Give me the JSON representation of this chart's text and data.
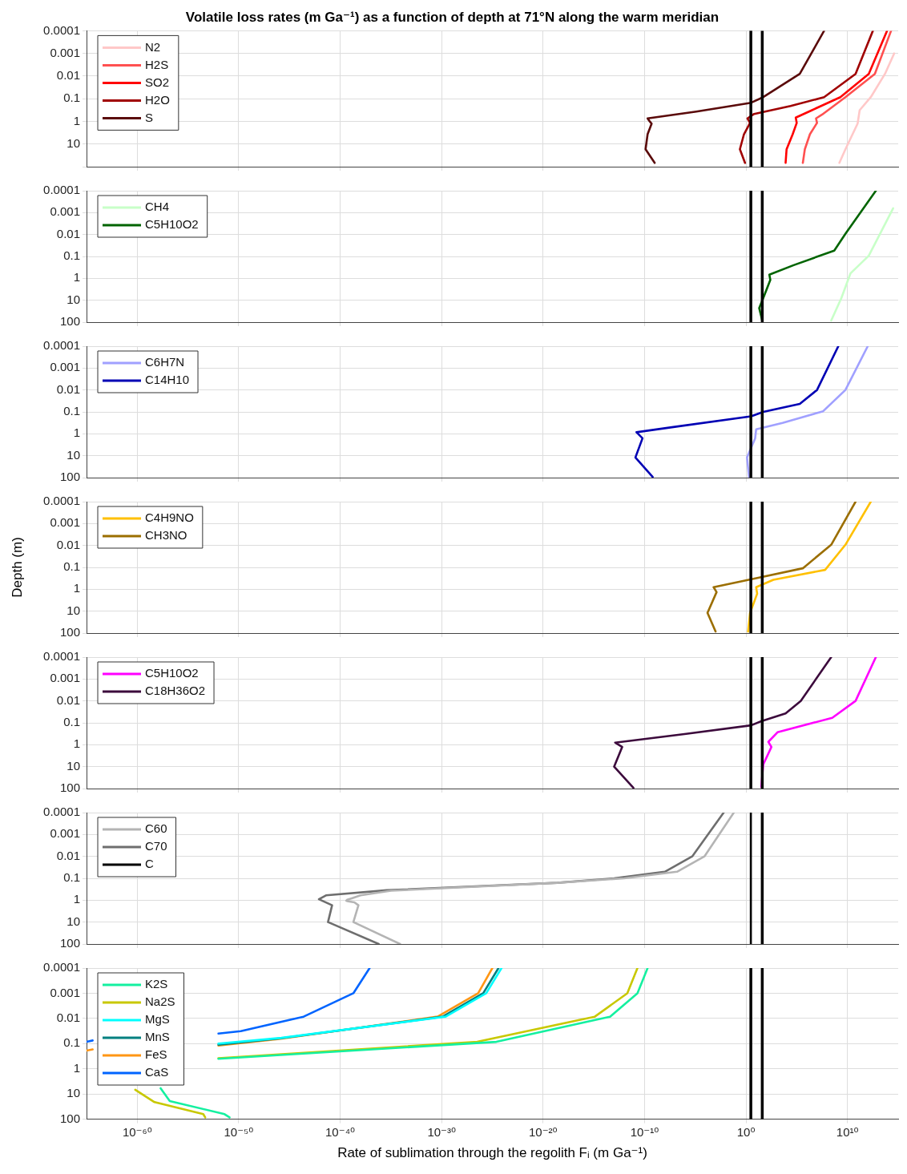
{
  "chart_data": [
    {
      "type": "line",
      "title": "Volatile loss rates (m Ga⁻¹) as a function of depth at 71°N along the warm meridian",
      "log": "xy",
      "grid": true,
      "legend": "top left",
      "marker": "none",
      "tick_labels": "y",
      "xlim": [
        1e-65,
        1000000000000000.0
      ],
      "xticks": [
        {
          "value": 1e-60,
          "label": null
        },
        {
          "value": 1e-50,
          "label": null
        },
        {
          "value": 1e-40,
          "label": null
        },
        {
          "value": 1e-30,
          "label": null
        },
        {
          "value": 1e-20,
          "label": null
        },
        {
          "value": 1e-10,
          "label": null
        },
        {
          "value": 1,
          "label": null
        },
        {
          "value": 10000000000.0,
          "label": null
        }
      ],
      "ylim": [
        100,
        0.0001
      ],
      "yticks": [
        0.0001,
        0.001,
        0.01,
        0.1,
        1,
        10,
        {
          "value": 100,
          "label": null
        }
      ],
      "ref_lines": [
        {
          "axis": "x",
          "value": 3,
          "color": "#000000"
        },
        {
          "axis": "x",
          "value": 40,
          "color": "#000000"
        }
      ],
      "series": [
        {
          "name": "N2",
          "color": "#ffc8c8",
          "x": [
            400000000000000.0,
            50000000000000.0,
            2000000000000.0,
            160000000000.0,
            100000000000.0,
            6300000000.0,
            1600000000.0
          ],
          "values": [
            0.001,
            0.008,
            0.085,
            0.32,
            1.26,
            17,
            68
          ]
        },
        {
          "name": "H2S",
          "color": "#ff5050",
          "x": [
            200000000000000.0,
            5000000000000.0,
            6300000000.0,
            32000000.0,
            8000000.0,
            10000000.0,
            2000000.0,
            630000.0,
            400000.0
          ],
          "values": [
            0.0001,
            0.008,
            0.085,
            0.5,
            0.74,
            1.17,
            3.7,
            17,
            68
          ]
        },
        {
          "name": "SO2",
          "color": "#ff0000",
          "x": [
            80000000000000.0,
            1260000000000.0,
            2000000000.0,
            3200000.0,
            80000.0,
            100000.0,
            40000.0,
            10000.0,
            8000.0
          ],
          "values": [
            0.0001,
            0.008,
            0.085,
            0.32,
            0.68,
            1.17,
            3.7,
            17,
            68
          ]
        },
        {
          "name": "H2O",
          "color": "#a00000",
          "x": [
            3200000000000.0,
            63000000000.0,
            50000000.0,
            25000.0,
            6.3,
            1.4,
            2.5,
            0.63,
            0.25,
            0.8
          ],
          "values": [
            0.0001,
            0.008,
            0.085,
            0.21,
            0.47,
            0.74,
            1.17,
            3.7,
            17,
            68
          ]
        },
        {
          "name": "S",
          "color": "#5a0a0a",
          "x": [
            50000000.0,
            200000.0,
            50,
            3.2,
            1.26e-05,
            2e-10,
            3.2e-10,
            5e-10,
            2e-10,
            1.26e-10,
            1e-09
          ],
          "values": [
            0.0001,
            0.008,
            0.085,
            0.15,
            0.37,
            0.74,
            1,
            1.26,
            3.7,
            17,
            68
          ]
        }
      ]
    },
    {
      "type": "line",
      "log": "xy",
      "grid": true,
      "legend": "top left",
      "marker": "none",
      "tick_labels": "y",
      "xlim": [
        1e-65,
        1000000000000000.0
      ],
      "xticks": [
        {
          "value": 1e-60,
          "label": null
        },
        {
          "value": 1e-50,
          "label": null
        },
        {
          "value": 1e-40,
          "label": null
        },
        {
          "value": 1e-30,
          "label": null
        },
        {
          "value": 1e-20,
          "label": null
        },
        {
          "value": 1e-10,
          "label": null
        },
        {
          "value": 1,
          "label": null
        },
        {
          "value": 10000000000.0,
          "label": null
        }
      ],
      "ylim": [
        100,
        0.0001
      ],
      "yticks": [
        0.0001,
        0.001,
        0.01,
        0.1,
        1,
        10,
        100
      ],
      "ref_lines": [
        {
          "axis": "x",
          "value": 3,
          "color": "#000000"
        },
        {
          "axis": "x",
          "value": 40,
          "color": "#000000"
        }
      ],
      "series": [
        {
          "name": "CH4",
          "color": "#c8ffc8",
          "x": [
            320000000000000.0,
            1260000000000.0,
            20000000000.0,
            2500000000.0,
            250000000.0
          ],
          "values": [
            0.00063,
            0.093,
            0.59,
            8,
            85
          ]
        },
        {
          "name": "C5H10O2",
          "color": "#006400",
          "x": [
            6300000000000.0,
            6300000000.0,
            500000000.0,
            50000.0,
            200,
            250,
            50,
            20,
            40
          ],
          "values": [
            0.0001,
            0.0093,
            0.054,
            0.25,
            0.68,
            1.17,
            8,
            23,
            85
          ]
        }
      ]
    },
    {
      "type": "line",
      "log": "xy",
      "grid": true,
      "legend": "top left",
      "marker": "none",
      "tick_labels": "y",
      "xlim": [
        1e-65,
        1000000000000000.0
      ],
      "xticks": [
        {
          "value": 1e-60,
          "label": null
        },
        {
          "value": 1e-50,
          "label": null
        },
        {
          "value": 1e-40,
          "label": null
        },
        {
          "value": 1e-30,
          "label": null
        },
        {
          "value": 1e-20,
          "label": null
        },
        {
          "value": 1e-10,
          "label": null
        },
        {
          "value": 1,
          "label": null
        },
        {
          "value": 10000000000.0,
          "label": null
        }
      ],
      "ylim": [
        100,
        0.0001
      ],
      "yticks": [
        0.0001,
        0.001,
        0.01,
        0.1,
        1,
        10,
        100
      ],
      "ref_lines": [
        {
          "axis": "x",
          "value": 3,
          "color": "#000000"
        },
        {
          "axis": "x",
          "value": 40,
          "color": "#000000"
        }
      ],
      "series": [
        {
          "name": "C6H7N",
          "color": "#a0a0ff",
          "x": [
            1000000000000.0,
            6300000000.0,
            40000000.0,
            4000.0,
            10,
            8,
            1.26,
            2
          ],
          "values": [
            0.0001,
            0.01,
            0.093,
            0.32,
            0.63,
            1.6,
            12,
            93
          ]
        },
        {
          "name": "C14H10",
          "color": "#0000b4",
          "x": [
            1260000000.0,
            10000000.0,
            200000.0,
            50,
            3.2,
            5e-08,
            1.6e-11,
            6.3e-11,
            1.26e-11,
            6.3e-10
          ],
          "values": [
            0.0001,
            0.01,
            0.043,
            0.1,
            0.16,
            0.5,
            0.85,
            1.6,
            12,
            93
          ]
        }
      ]
    },
    {
      "type": "line",
      "ylabel": "Depth (m)",
      "log": "xy",
      "grid": true,
      "legend": "top left",
      "marker": "none",
      "tick_labels": "y",
      "xlim": [
        1e-65,
        1000000000000000.0
      ],
      "xticks": [
        {
          "value": 1e-60,
          "label": null
        },
        {
          "value": 1e-50,
          "label": null
        },
        {
          "value": 1e-40,
          "label": null
        },
        {
          "value": 1e-30,
          "label": null
        },
        {
          "value": 1e-20,
          "label": null
        },
        {
          "value": 1e-10,
          "label": null
        },
        {
          "value": 1,
          "label": null
        },
        {
          "value": 10000000000.0,
          "label": null
        }
      ],
      "ylim": [
        100,
        0.0001
      ],
      "yticks": [
        0.0001,
        0.001,
        0.01,
        0.1,
        1,
        10,
        100
      ],
      "ref_lines": [
        {
          "axis": "x",
          "value": 3,
          "color": "#000000"
        },
        {
          "axis": "x",
          "value": 40,
          "color": "#000000"
        }
      ],
      "series": [
        {
          "name": "C4H9NO",
          "color": "#ffc000",
          "x": [
            2000000000000.0,
            6300000000.0,
            63000000.0,
            500,
            10,
            12.6,
            2.5,
            1.6
          ],
          "values": [
            0.0001,
            0.0093,
            0.13,
            0.37,
            0.8,
            1.6,
            12,
            85
          ]
        },
        {
          "name": "CH3NO",
          "color": "#9b6e00",
          "x": [
            63000000000.0,
            250000000.0,
            400000.0,
            16,
            0.00063,
            0.00126,
            0.00016,
            0.001
          ],
          "values": [
            0.0001,
            0.0093,
            0.11,
            0.3,
            0.8,
            1.35,
            12,
            85
          ]
        }
      ]
    },
    {
      "type": "line",
      "log": "xy",
      "grid": true,
      "legend": "top left",
      "marker": "none",
      "tick_labels": "y",
      "xlim": [
        1e-65,
        1000000000000000.0
      ],
      "xticks": [
        {
          "value": 1e-60,
          "label": null
        },
        {
          "value": 1e-50,
          "label": null
        },
        {
          "value": 1e-40,
          "label": null
        },
        {
          "value": 1e-30,
          "label": null
        },
        {
          "value": 1e-20,
          "label": null
        },
        {
          "value": 1e-10,
          "label": null
        },
        {
          "value": 1,
          "label": null
        },
        {
          "value": 10000000000.0,
          "label": null
        }
      ],
      "ylim": [
        100,
        0.0001
      ],
      "yticks": [
        0.0001,
        0.001,
        0.01,
        0.1,
        1,
        10,
        100
      ],
      "ref_lines": [
        {
          "axis": "x",
          "value": 3,
          "color": "#000000"
        },
        {
          "axis": "x",
          "value": 40,
          "color": "#000000"
        }
      ],
      "series": [
        {
          "name": "C5H10O2",
          "color": "#ff00ff",
          "x": [
            6300000000000.0,
            63000000000.0,
            320000000.0,
            1260.0,
            160,
            320,
            50,
            32
          ],
          "values": [
            0.0001,
            0.01,
            0.059,
            0.27,
            0.74,
            1.26,
            8,
            85
          ]
        },
        {
          "name": "C18H36O2",
          "color": "#3c0a3c",
          "x": [
            250000000.0,
            250000.0,
            8000.0,
            32,
            3.2,
            1.26e-06,
            1.26e-13,
            6.3e-13,
            1e-13,
            8e-12
          ],
          "values": [
            0.0001,
            0.01,
            0.037,
            0.085,
            0.13,
            0.32,
            0.8,
            1.26,
            10,
            93
          ]
        }
      ]
    },
    {
      "type": "line",
      "log": "xy",
      "grid": true,
      "legend": "top left",
      "marker": "none",
      "tick_labels": "y",
      "xlim": [
        1e-65,
        1000000000000000.0
      ],
      "xticks": [
        {
          "value": 1e-60,
          "label": null
        },
        {
          "value": 1e-50,
          "label": null
        },
        {
          "value": 1e-40,
          "label": null
        },
        {
          "value": 1e-30,
          "label": null
        },
        {
          "value": 1e-20,
          "label": null
        },
        {
          "value": 1e-10,
          "label": null
        },
        {
          "value": 1,
          "label": null
        },
        {
          "value": 10000000000.0,
          "label": null
        }
      ],
      "ylim": [
        100,
        0.0001
      ],
      "yticks": [
        0.0001,
        0.001,
        0.01,
        0.1,
        1,
        10,
        100
      ],
      "ref_lines": [
        {
          "axis": "x",
          "value": 40,
          "color": "#000000"
        }
      ],
      "series": [
        {
          "name": "C60",
          "color": "#b4b4b4",
          "x": [
            0.063,
            8e-05,
            1.6e-07,
            1e-12,
            2.5e-19,
            1e-35,
            1e-38,
            1.6e-39,
            5e-40,
            4e-40,
            6.3e-40,
            2.5e-39,
            6.3e-39,
            2e-39,
            8e-35
          ],
          "values": [
            0.0001,
            0.01,
            0.05,
            0.1,
            0.16,
            0.37,
            0.6,
            0.8,
            0.95,
            1.05,
            1.12,
            1.25,
            1.7,
            10,
            100
          ]
        },
        {
          "name": "C70",
          "color": "#6e6e6e",
          "x": [
            0.0063,
            5e-06,
            1e-08,
            1e-13,
            2.5e-19,
            4e-36,
            4e-42,
            8e-43,
            1.6e-41,
            6.3e-42,
            6.3e-37
          ],
          "values": [
            0.0001,
            0.01,
            0.05,
            0.1,
            0.16,
            0.35,
            0.6,
            0.9,
            1.7,
            10,
            100
          ]
        },
        {
          "name": "C",
          "color": "#000000",
          "x": [
            3,
            3
          ],
          "values": [
            0.0001,
            100
          ]
        }
      ]
    },
    {
      "type": "line",
      "xlabel": "Rate of sublimation through the regolith Fᵢ (m Ga⁻¹)",
      "log": "xy",
      "grid": true,
      "legend": "top left",
      "marker": "none",
      "xlim": [
        1e-65,
        1000000000000000.0
      ],
      "xticks": [
        {
          "value": 1e-60,
          "label": "10⁻⁶⁰"
        },
        {
          "value": 1e-50,
          "label": "10⁻⁵⁰"
        },
        {
          "value": 1e-40,
          "label": "10⁻⁴⁰"
        },
        {
          "value": 1e-30,
          "label": "10⁻³⁰"
        },
        {
          "value": 1e-20,
          "label": "10⁻²⁰"
        },
        {
          "value": 1e-10,
          "label": "10⁻¹⁰"
        },
        {
          "value": 1,
          "label": "10⁰"
        },
        {
          "value": 10000000000.0,
          "label": "10¹⁰"
        }
      ],
      "ylim": [
        100,
        0.0001
      ],
      "yticks": [
        0.0001,
        0.001,
        0.01,
        0.1,
        1,
        10,
        100
      ],
      "ref_lines": [
        {
          "axis": "x",
          "value": 3,
          "color": "#000000"
        },
        {
          "axis": "x",
          "value": 40,
          "color": "#000000"
        }
      ],
      "series": [
        {
          "name": "K2S",
          "color": "#14f0a0",
          "x": [
            2e-10,
            2e-11,
            4e-14,
            2.5e-25,
            1e-52,
            null,
            2e-58,
            1.6e-57,
            4e-52,
            1.26e-51
          ],
          "values": [
            0.0001,
            0.001,
            0.0085,
            0.085,
            0.4,
            null,
            5.9,
            19,
            63,
            85
          ]
        },
        {
          "name": "Na2S",
          "color": "#c8c800",
          "x": [
            2e-11,
            2e-12,
            1.26e-15,
            3.2e-27,
            1e-52,
            null,
            6.3e-61,
            5e-59,
            3.2e-54,
            5e-54
          ],
          "values": [
            0.0001,
            0.001,
            0.0085,
            0.085,
            0.38,
            null,
            6.8,
            21,
            63,
            85
          ]
        },
        {
          "name": "MgS",
          "color": "#00ffff",
          "x": [
            8e-25,
            2.5e-26,
            2.5e-30,
            1.6e-46,
            1e-52
          ],
          "values": [
            0.0001,
            0.001,
            0.0085,
            0.059,
            0.1
          ]
        },
        {
          "name": "MnS",
          "color": "#008080",
          "x": [
            4e-25,
            1.26e-26,
            1.26e-30,
            1.26e-46,
            1e-52
          ],
          "values": [
            0.0001,
            0.001,
            0.0085,
            0.062,
            0.11
          ]
        },
        {
          "name": "FeS",
          "color": "#ff9614",
          "x": [
            1e-25,
            4e-27,
            4e-31,
            1e-46,
            1e-52,
            null,
            4e-65,
            1e-65
          ],
          "values": [
            0.0001,
            0.001,
            0.0085,
            0.065,
            0.12,
            null,
            0.17,
            0.19
          ]
        },
        {
          "name": "CaS",
          "color": "#0064ff",
          "x": [
            8e-38,
            2e-39,
            2.5e-44,
            1.6e-50,
            1e-52,
            null,
            4e-65,
            1e-65
          ],
          "values": [
            0.0001,
            0.001,
            0.0085,
            0.032,
            0.04,
            null,
            0.075,
            0.085
          ]
        }
      ]
    }
  ]
}
